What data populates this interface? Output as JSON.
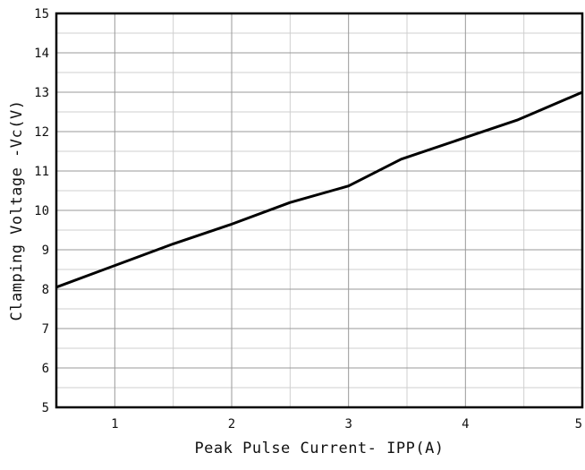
{
  "chart_data": {
    "type": "line",
    "title": "",
    "xlabel": "Peak Pulse Current- IPP(A)",
    "ylabel": "Clamping Voltage -Vc(V)",
    "xlim": [
      0.5,
      5
    ],
    "ylim": [
      5,
      15
    ],
    "x_ticks": [
      1,
      2,
      3,
      4,
      5
    ],
    "x_minor_ticks": [
      1.5,
      2.5,
      3.5,
      4.5
    ],
    "y_ticks": [
      5,
      6,
      7,
      8,
      9,
      10,
      11,
      12,
      13,
      14,
      15
    ],
    "y_minor_ticks": [
      5.5,
      6.5,
      7.5,
      8.5,
      9.5,
      10.5,
      11.5,
      12.5,
      13.5,
      14.5
    ],
    "grid": true,
    "legend": "none",
    "series": [
      {
        "x": [
          0.5,
          1.0,
          1.5,
          2.0,
          2.5,
          3.0,
          3.45,
          4.0,
          4.45,
          5.0
        ],
        "y": [
          8.05,
          8.6,
          9.15,
          9.65,
          10.2,
          10.62,
          11.3,
          11.85,
          12.3,
          13.0
        ]
      }
    ],
    "colors": {
      "line": "#000000",
      "major_grid": "#9a9a9a",
      "minor_grid": "#cfcfcf",
      "frame": "#000000"
    }
  }
}
